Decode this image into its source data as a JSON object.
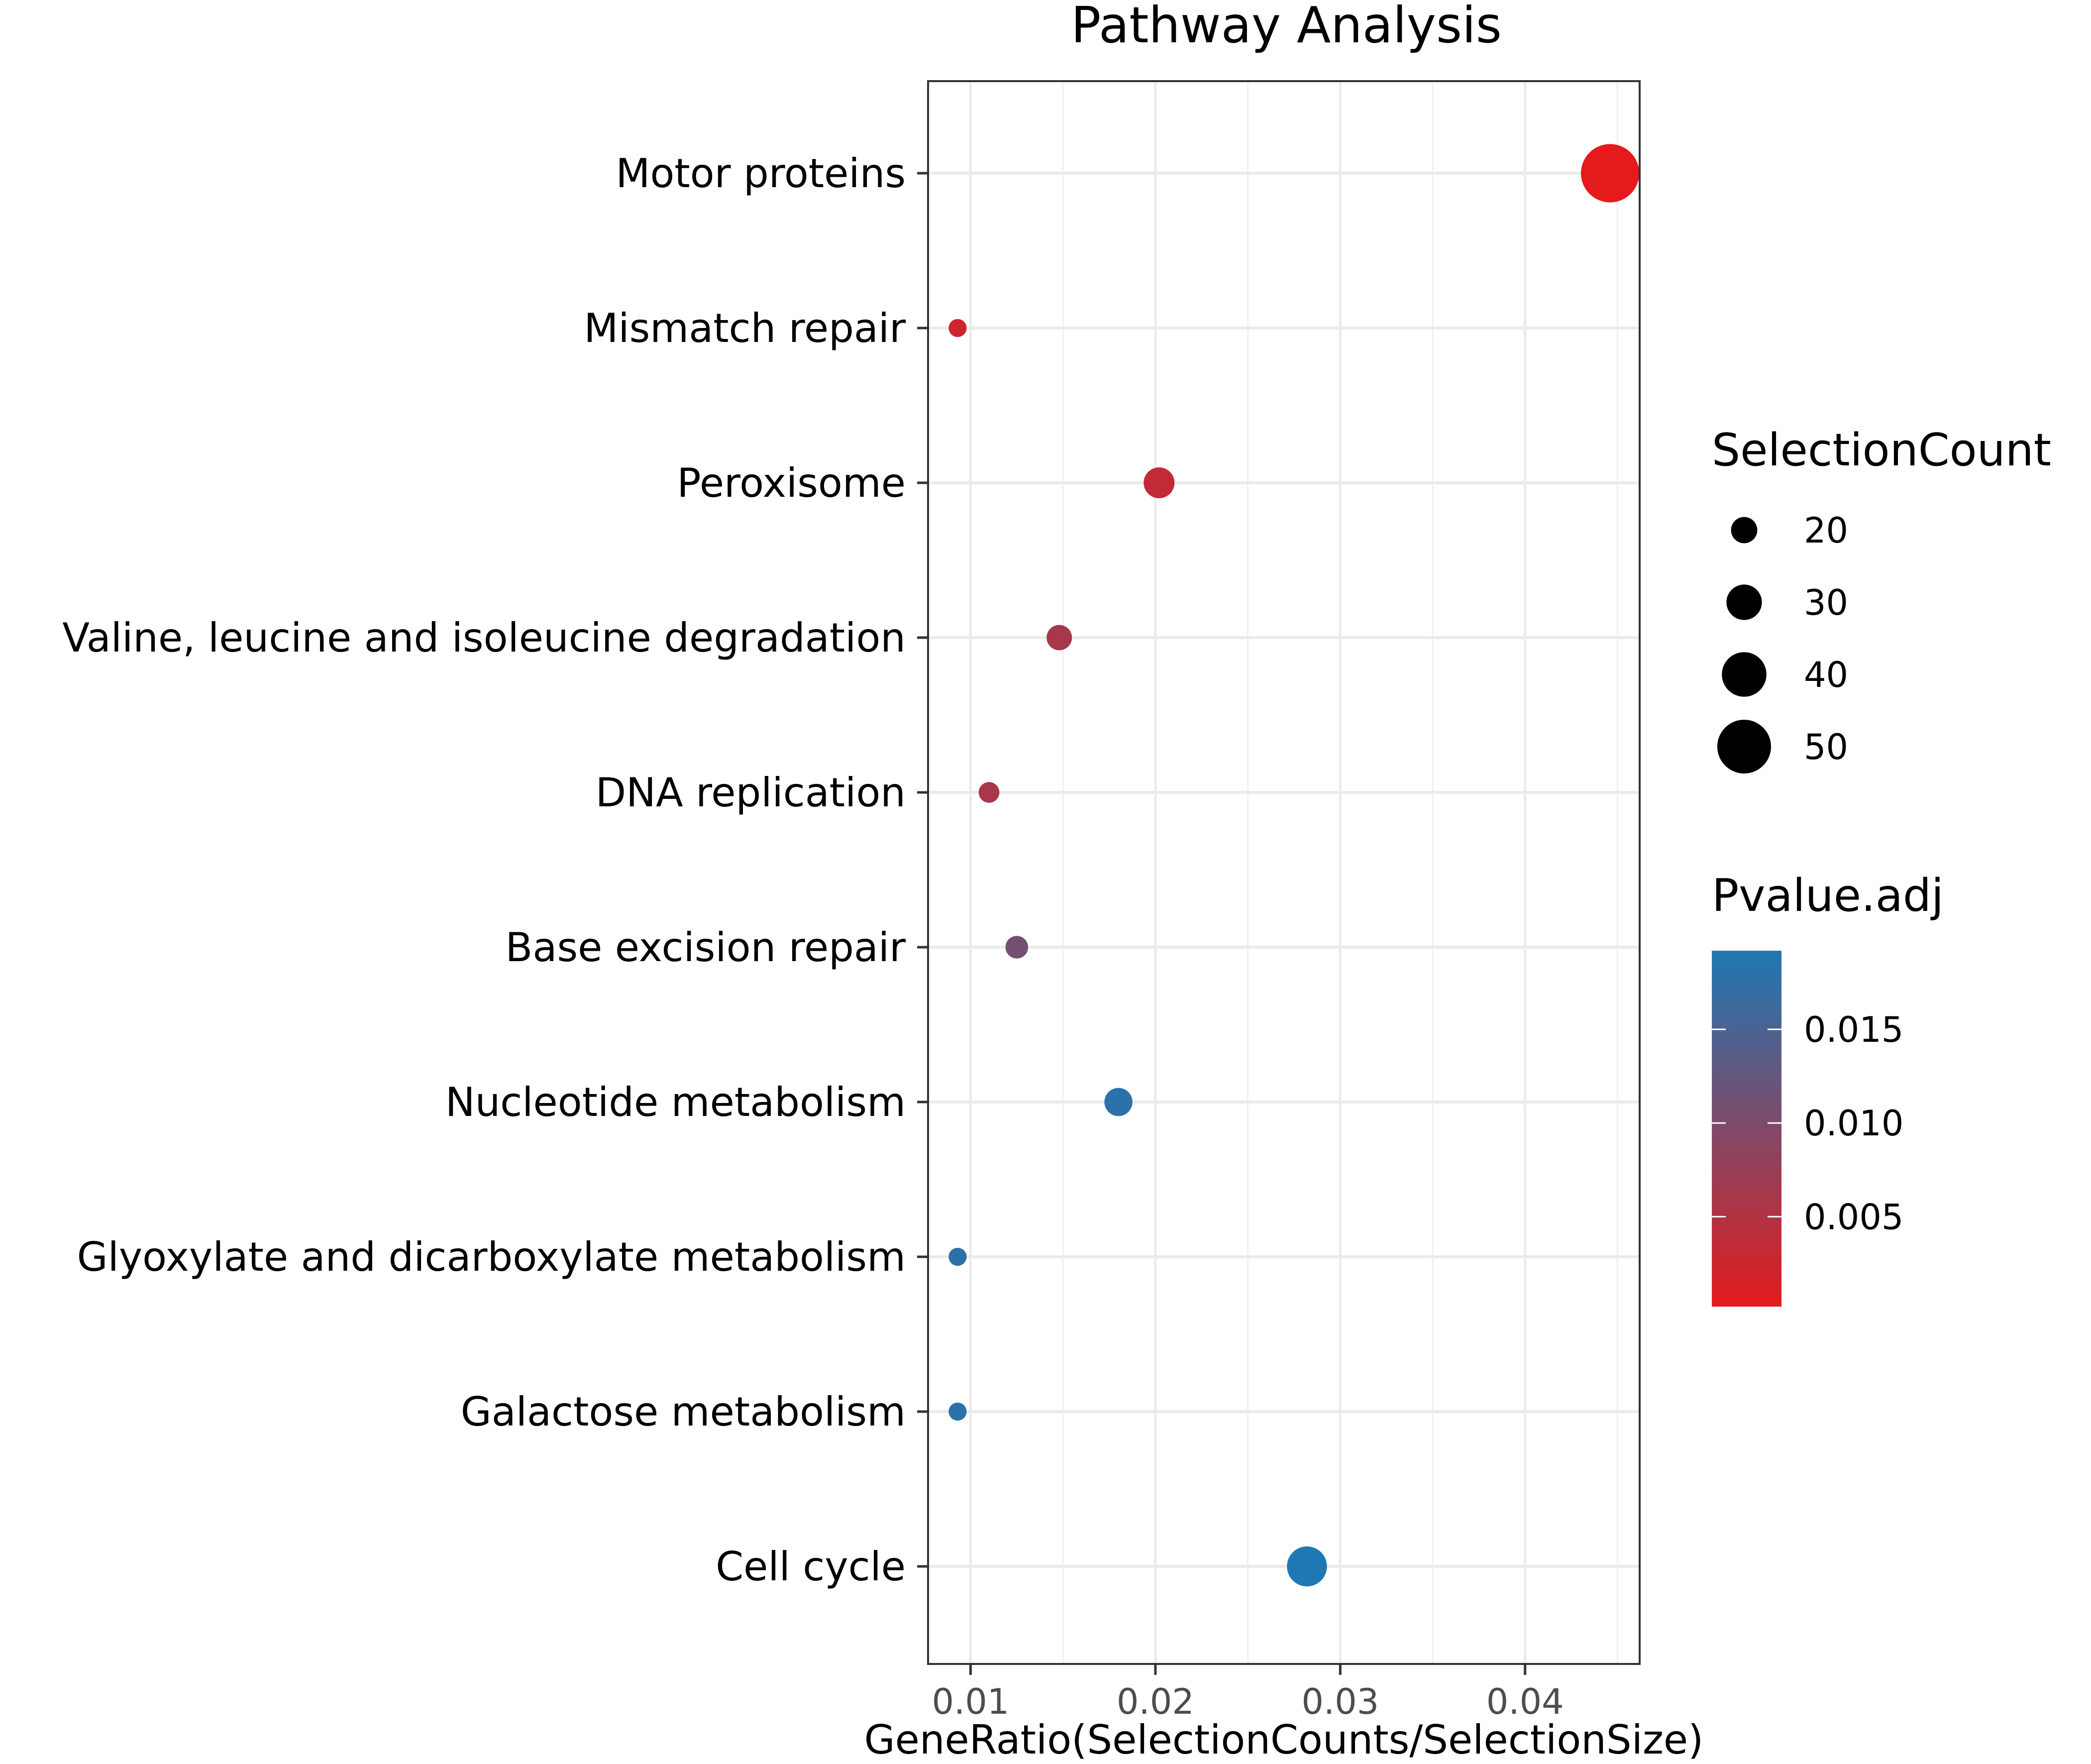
{
  "chart_data": {
    "type": "scatter",
    "title": "Pathway Analysis",
    "xlabel": "GeneRatio(SelectionCounts/SelectionSize)",
    "ylabel": "",
    "xlim": [
      0.0077,
      0.0462
    ],
    "x_ticks": [
      0.01,
      0.02,
      0.03,
      0.04
    ],
    "x_tick_labels": [
      "0.01",
      "0.02",
      "0.03",
      "0.04"
    ],
    "grid": true,
    "points": [
      {
        "pathway": "Motor proteins",
        "gene_ratio": 0.0446,
        "selection_count": 55,
        "pvalue_adj": 0.0002
      },
      {
        "pathway": "Mismatch repair",
        "gene_ratio": 0.0093,
        "selection_count": 11,
        "pvalue_adj": 0.0025
      },
      {
        "pathway": "Peroxisome",
        "gene_ratio": 0.0202,
        "selection_count": 25,
        "pvalue_adj": 0.0035
      },
      {
        "pathway": "Valine, leucine and isoleucine degradation",
        "gene_ratio": 0.0148,
        "selection_count": 19,
        "pvalue_adj": 0.006
      },
      {
        "pathway": "DNA replication",
        "gene_ratio": 0.011,
        "selection_count": 14,
        "pvalue_adj": 0.006
      },
      {
        "pathway": "Base excision repair",
        "gene_ratio": 0.0125,
        "selection_count": 16,
        "pvalue_adj": 0.011
      },
      {
        "pathway": "Nucleotide metabolism",
        "gene_ratio": 0.018,
        "selection_count": 22,
        "pvalue_adj": 0.018
      },
      {
        "pathway": "Glyoxylate and dicarboxylate metabolism",
        "gene_ratio": 0.0093,
        "selection_count": 11,
        "pvalue_adj": 0.018
      },
      {
        "pathway": "Galactose metabolism",
        "gene_ratio": 0.0093,
        "selection_count": 11,
        "pvalue_adj": 0.018
      },
      {
        "pathway": "Cell cycle",
        "gene_ratio": 0.0282,
        "selection_count": 35,
        "pvalue_adj": 0.0192
      }
    ],
    "size_legend": {
      "title": "SelectionCount",
      "values": [
        20,
        30,
        40,
        50
      ],
      "labels": [
        "20",
        "30",
        "40",
        "50"
      ]
    },
    "color_legend": {
      "title": "Pvalue.adj",
      "range": [
        0.0002,
        0.0192
      ],
      "ticks": [
        0.005,
        0.01,
        0.015
      ],
      "tick_labels": [
        "0.005",
        "0.010",
        "0.015"
      ],
      "low_color": "#e41a1c",
      "high_color": "#1f78b4"
    },
    "legend_position": "right"
  }
}
